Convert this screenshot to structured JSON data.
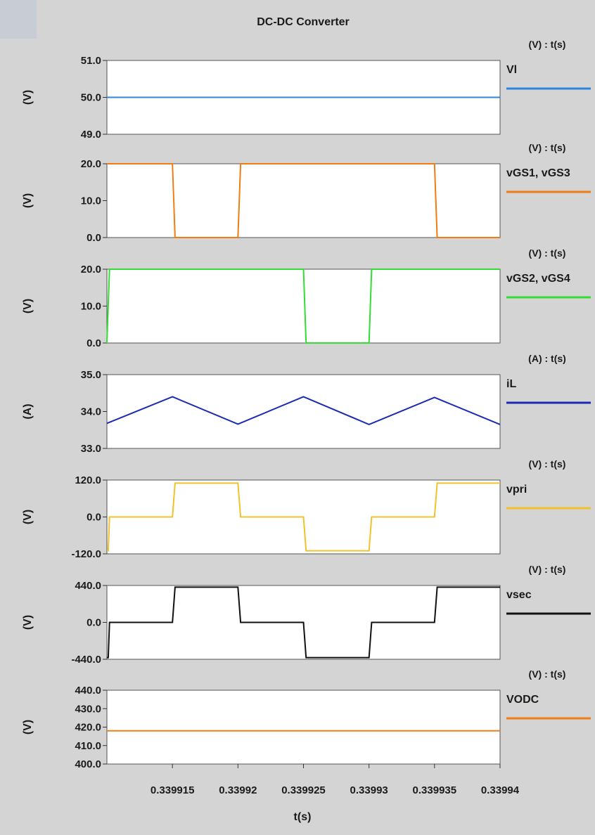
{
  "window": {
    "title": "DC-DC Converter"
  },
  "chart_data": {
    "type": "line",
    "title": "DC-DC Converter",
    "xlabel": "t(s)",
    "xlim": [
      0.33991,
      0.33994
    ],
    "xticks": [
      0.339915,
      0.33992,
      0.339925,
      0.33993,
      0.339935,
      0.33994
    ],
    "xtick_labels": [
      "0.339915",
      "0.33992",
      "0.339925",
      "0.33993",
      "0.339935",
      "0.33994"
    ],
    "panels": [
      {
        "unit_label": "(V) : t(s)",
        "ylabel": "(V)",
        "ylim": [
          49.0,
          51.0
        ],
        "yticks": [
          49.0,
          50.0,
          51.0
        ],
        "ytick_labels": [
          "49.0",
          "50.0",
          "51.0"
        ],
        "series": [
          {
            "name": "Vl",
            "color": "#2e86de",
            "x": [
              0.33991,
              0.33994
            ],
            "y": [
              50.0,
              50.0
            ]
          }
        ]
      },
      {
        "unit_label": "(V) : t(s)",
        "ylabel": "(V)",
        "ylim": [
          0.0,
          20.0
        ],
        "yticks": [
          0.0,
          10.0,
          20.0
        ],
        "ytick_labels": [
          "0.0",
          "10.0",
          "20.0"
        ],
        "series": [
          {
            "name": "vGS1, vGS3",
            "color": "#f07d14",
            "x": [
              0.33991,
              0.339915,
              0.3399152,
              0.33992,
              0.3399202,
              0.339935,
              0.3399352,
              0.33994
            ],
            "y": [
              20,
              20,
              0,
              0,
              20,
              20,
              0,
              0
            ]
          }
        ]
      },
      {
        "unit_label": "(V) : t(s)",
        "ylabel": "(V)",
        "ylim": [
          0.0,
          20.0
        ],
        "yticks": [
          0.0,
          10.0,
          20.0
        ],
        "ytick_labels": [
          "0.0",
          "10.0",
          "20.0"
        ],
        "series": [
          {
            "name": "vGS2, vGS4",
            "color": "#33dd33",
            "x": [
              0.33991,
              0.33991,
              0.3399102,
              0.339925,
              0.3399252,
              0.33993,
              0.3399302,
              0.33994
            ],
            "y": [
              0,
              0,
              20,
              20,
              0,
              0,
              20,
              20
            ]
          }
        ]
      },
      {
        "unit_label": "(A) : t(s)",
        "ylabel": "(A)",
        "ylim": [
          33.0,
          35.0
        ],
        "yticks": [
          33.0,
          34.0,
          35.0
        ],
        "ytick_labels": [
          "33.0",
          "34.0",
          "35.0"
        ],
        "series": [
          {
            "name": "iL",
            "color": "#1c2ab4",
            "x": [
              0.33991,
              0.339915,
              0.33992,
              0.339925,
              0.33993,
              0.339935,
              0.33994
            ],
            "y": [
              33.68,
              34.4,
              33.66,
              34.4,
              33.65,
              34.38,
              33.65
            ]
          }
        ]
      },
      {
        "unit_label": "(V) : t(s)",
        "ylabel": "(V)",
        "ylim": [
          -120.0,
          120.0
        ],
        "yticks": [
          -120.0,
          0.0,
          120.0
        ],
        "ytick_labels": [
          "-120.0",
          "0.0",
          "120.0"
        ],
        "series": [
          {
            "name": "vpri",
            "color": "#f2c12e",
            "x": [
              0.33991,
              0.3399101,
              0.3399102,
              0.339915,
              0.3399152,
              0.33992,
              0.3399202,
              0.339925,
              0.3399252,
              0.33993,
              0.3399302,
              0.339935,
              0.3399352,
              0.33994
            ],
            "y": [
              -110,
              -110,
              0,
              0,
              110,
              110,
              0,
              0,
              -110,
              -110,
              0,
              0,
              110,
              110
            ]
          }
        ]
      },
      {
        "unit_label": "(V) : t(s)",
        "ylabel": "(V)",
        "ylim": [
          -440.0,
          440.0
        ],
        "yticks": [
          -440.0,
          0.0,
          440.0
        ],
        "ytick_labels": [
          "-440.0",
          "0.0",
          "440.0"
        ],
        "series": [
          {
            "name": "vsec",
            "color": "#111111",
            "x": [
              0.33991,
              0.3399101,
              0.3399102,
              0.339915,
              0.3399152,
              0.33992,
              0.3399202,
              0.339925,
              0.3399252,
              0.33993,
              0.3399302,
              0.339935,
              0.3399352,
              0.33994
            ],
            "y": [
              -420,
              -420,
              0,
              0,
              420,
              420,
              0,
              0,
              -420,
              -420,
              0,
              0,
              420,
              420
            ]
          }
        ]
      },
      {
        "unit_label": "(V) : t(s)",
        "ylabel": "(V)",
        "ylim": [
          400.0,
          440.0
        ],
        "yticks": [
          400.0,
          410.0,
          420.0,
          430.0,
          440.0
        ],
        "ytick_labels": [
          "400.0",
          "410.0",
          "420.0",
          "430.0",
          "440.0"
        ],
        "series": [
          {
            "name": "VODC",
            "color": "#f07d14",
            "x": [
              0.33991,
              0.33994
            ],
            "y": [
              418.0,
              418.0
            ]
          }
        ]
      }
    ]
  }
}
